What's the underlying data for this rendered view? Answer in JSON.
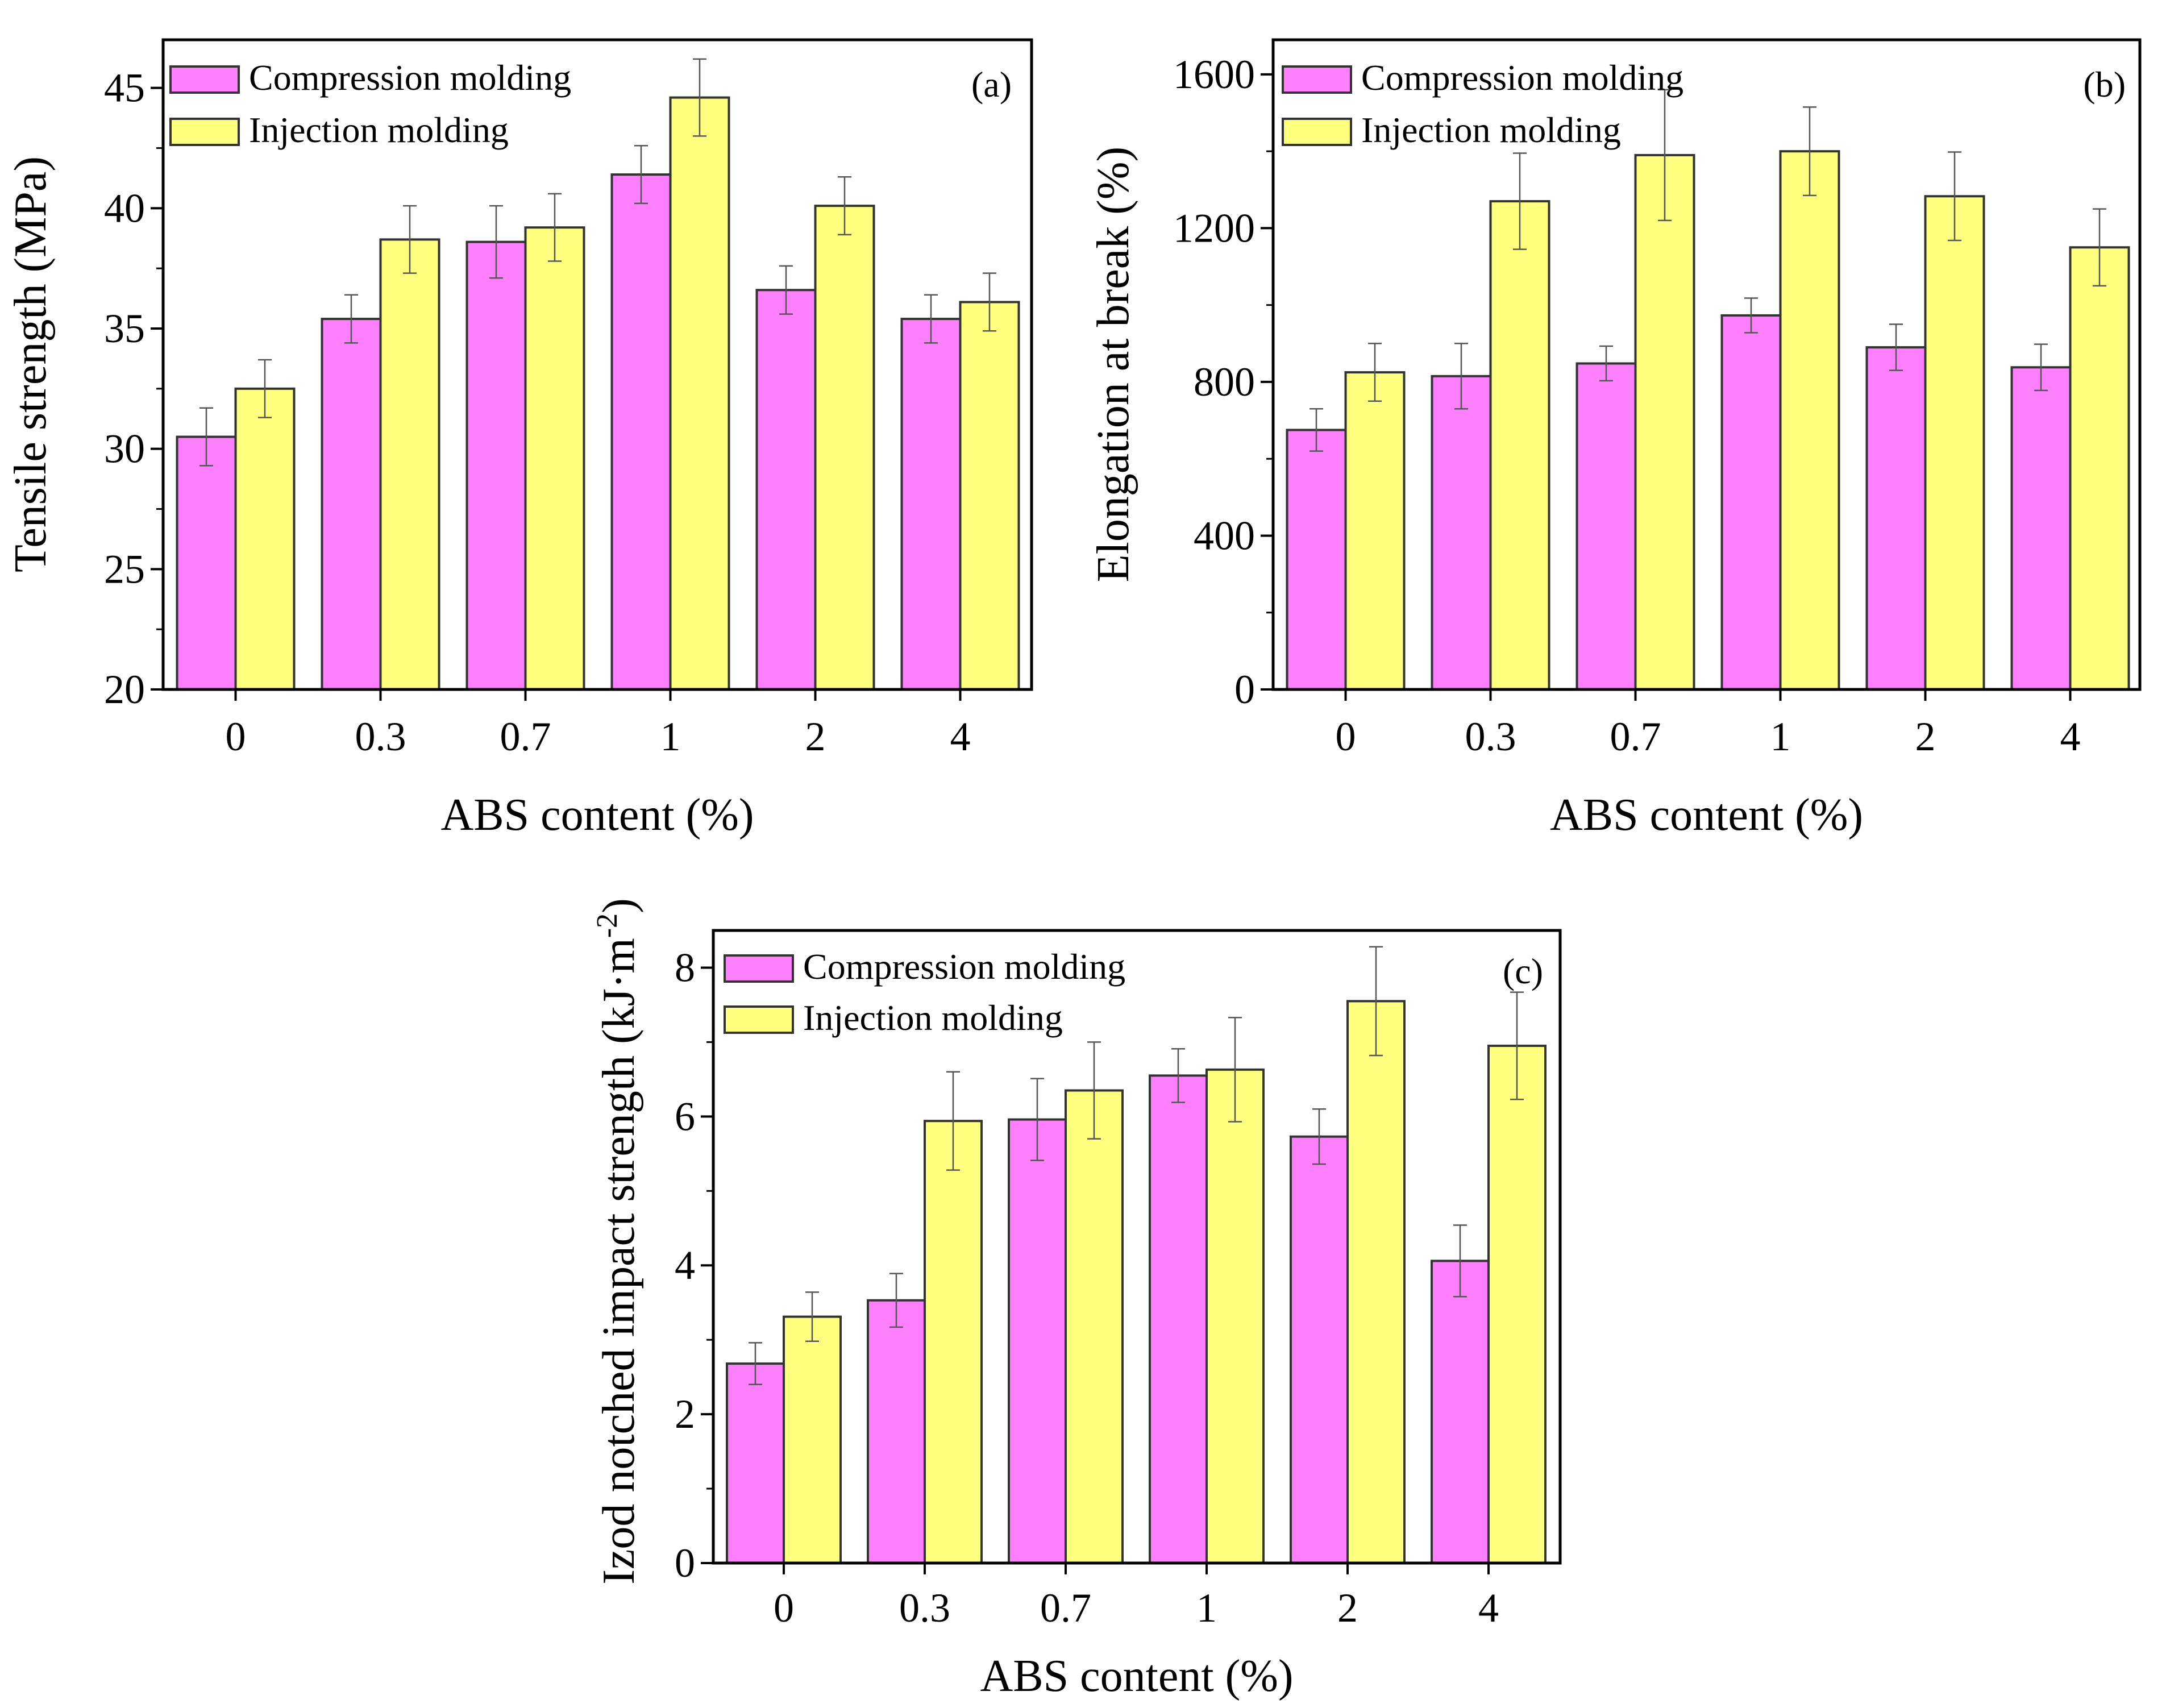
{
  "colors": {
    "compression": "#FF80FF",
    "injection": "#FFFF80",
    "outline": "#333333",
    "error": "#555555"
  },
  "chart_data": [
    {
      "type": "bar",
      "panel": "(a)",
      "categories": [
        "0",
        "0.3",
        "0.7",
        "1",
        "2",
        "4"
      ],
      "xlabel": "ABS content (%)",
      "ylabel": "Tensile strength (MPa)",
      "ylim": [
        20,
        47
      ],
      "yticks": [
        20,
        25,
        30,
        35,
        40,
        45
      ],
      "yticklabels": [
        "20",
        "25",
        "30",
        "35",
        "40",
        "45"
      ],
      "legend_position": "top-left",
      "series": [
        {
          "name": "Compression molding",
          "color": "#FF80FF",
          "values": [
            30.5,
            35.4,
            38.6,
            41.4,
            36.6,
            35.4
          ],
          "errors": [
            1.2,
            1.0,
            1.5,
            1.2,
            1.0,
            1.0
          ]
        },
        {
          "name": "Injection molding",
          "color": "#FFFF80",
          "values": [
            32.5,
            38.7,
            39.2,
            44.6,
            40.1,
            36.1
          ],
          "errors": [
            1.2,
            1.4,
            1.4,
            1.6,
            1.2,
            1.2
          ]
        }
      ]
    },
    {
      "type": "bar",
      "panel": "(b)",
      "categories": [
        "0",
        "0.3",
        "0.7",
        "1",
        "2",
        "4"
      ],
      "xlabel": "ABS content (%)",
      "ylabel": "Elongation at break (%)",
      "ylim": [
        0,
        1690
      ],
      "yticks": [
        0,
        400,
        800,
        1200,
        1600
      ],
      "yticklabels": [
        "0",
        "400",
        "800",
        "1200",
        "1600"
      ],
      "legend_position": "top-left",
      "series": [
        {
          "name": "Compression molding",
          "color": "#FF80FF",
          "values": [
            675,
            815,
            848,
            973,
            890,
            838
          ],
          "errors": [
            55,
            85,
            45,
            45,
            60,
            60
          ]
        },
        {
          "name": "Injection molding",
          "color": "#FFFF80",
          "values": [
            825,
            1270,
            1390,
            1400,
            1283,
            1150
          ],
          "errors": [
            75,
            125,
            170,
            115,
            115,
            100
          ]
        }
      ]
    },
    {
      "type": "bar",
      "panel": "(c)",
      "categories": [
        "0",
        "0.3",
        "0.7",
        "1",
        "2",
        "4"
      ],
      "xlabel": "ABS content (%)",
      "ylabel": "Izod notched impact strength (kJ·m-2)",
      "ylabel_main": "Izod notched impact strength (kJ·m",
      "ylabel_sup": "-2",
      "ylabel_close": ")",
      "ylim": [
        0,
        8.5
      ],
      "yticks": [
        0,
        2,
        4,
        6,
        8
      ],
      "yticklabels": [
        "0",
        "2",
        "4",
        "6",
        "8"
      ],
      "legend_position": "top-left",
      "series": [
        {
          "name": "Compression molding",
          "color": "#FF80FF",
          "values": [
            2.68,
            3.53,
            5.96,
            6.55,
            5.73,
            4.06
          ],
          "errors": [
            0.28,
            0.36,
            0.55,
            0.36,
            0.37,
            0.48
          ]
        },
        {
          "name": "Injection molding",
          "color": "#FFFF80",
          "values": [
            3.31,
            5.94,
            6.35,
            6.63,
            7.55,
            6.95
          ],
          "errors": [
            0.33,
            0.66,
            0.65,
            0.7,
            0.73,
            0.72
          ]
        }
      ]
    }
  ]
}
